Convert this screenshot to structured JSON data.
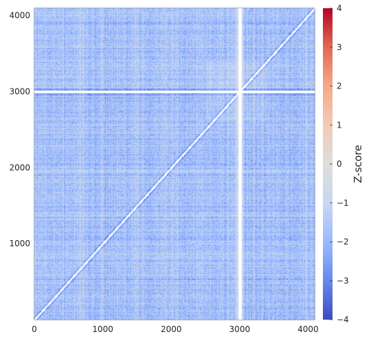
{
  "chart_data": {
    "type": "heatmap",
    "title": "",
    "xlabel": "",
    "ylabel": "",
    "xlim": [
      0,
      4096
    ],
    "ylim": [
      0,
      4096
    ],
    "x_ticks": [
      0,
      1000,
      2000,
      3000,
      4000
    ],
    "y_ticks": [
      1000,
      2000,
      3000,
      4000
    ],
    "colorbar": {
      "label": "Z-score",
      "range": [
        -4,
        4
      ],
      "ticks": [
        -4,
        -3,
        -2,
        -1,
        0,
        1,
        2,
        3,
        4
      ],
      "tick_labels": [
        "−4",
        "−3",
        "−2",
        "−1",
        "0",
        "1",
        "2",
        "3",
        "4"
      ],
      "colormap": [
        "#3b4cc0",
        "#6788ee",
        "#9abbff",
        "#c9d7f0",
        "#dddddd",
        "#f2cbb7",
        "#f7a889",
        "#e26952",
        "#b40426"
      ]
    },
    "features": {
      "diagonal_gap": "white line along y = x",
      "masked_row": 3000,
      "masked_column": 3000,
      "dominant_zscore_range": [
        -3,
        0
      ]
    }
  }
}
